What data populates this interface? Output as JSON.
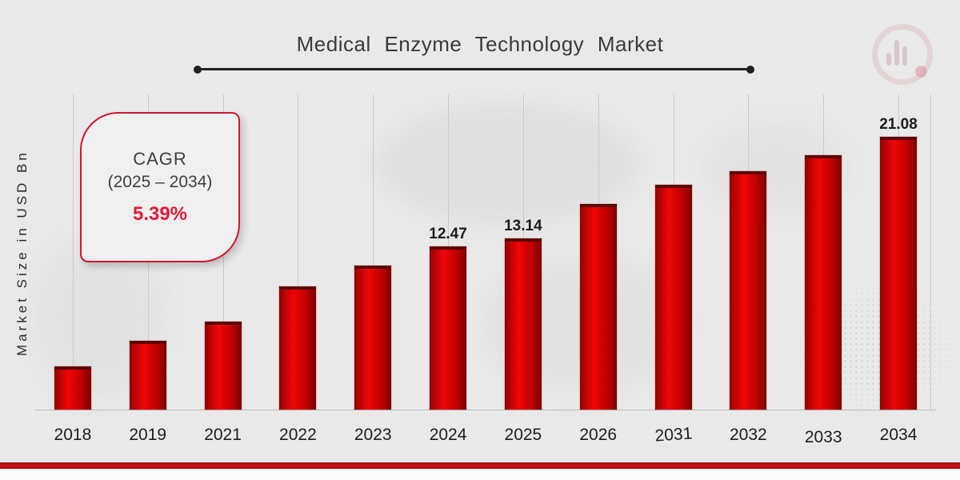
{
  "header": {
    "title": "Medical Enzyme Technology Market"
  },
  "y_axis_label": "Market Size in USD Bn",
  "cagr_box": {
    "line1": "CAGR",
    "line2": "(2025 – 2034)",
    "value": "5.39%"
  },
  "icons": {
    "brand_logo": "bar-chart-circle-logo"
  },
  "chart_data": {
    "type": "bar",
    "title": "Medical Enzyme Technology Market",
    "xlabel": "",
    "ylabel": "Market Size in USD Bn",
    "categories": [
      "2018",
      "2019",
      "2021",
      "2022",
      "2023",
      "2024",
      "2025",
      "2026",
      "2031",
      "2032",
      "2033",
      "2034"
    ],
    "values": [
      3.1,
      5.1,
      6.6,
      9.4,
      11.0,
      12.47,
      13.14,
      15.8,
      17.3,
      18.4,
      19.6,
      21.08
    ],
    "data_labels": [
      "",
      "",
      "",
      "",
      "",
      "12.47",
      "13.14",
      "",
      "",
      "",
      "",
      "21.08"
    ],
    "labeled_points": {
      "2024": 12.47,
      "2025": 13.14,
      "2034": 21.08
    },
    "ylim": [
      0,
      24
    ],
    "grid": "vertical-line-per-category",
    "legend": "none",
    "bar_color": "#cc0101",
    "cagr_note": "CAGR (2025 – 2034) 5.39%"
  },
  "colors": {
    "background": "#e9e9e9",
    "bar_center": "#ee0606",
    "bar_edge": "#7c0101",
    "bar_top_cap": "#5f0202",
    "grid_line": "#c9c9c9",
    "axis_line": "#bdbdbd",
    "title_text": "#3a3a3a",
    "cagr_value_red": "#e51937",
    "cagr_border_red": "#d5152e",
    "footer_band_red": "#b01014"
  }
}
